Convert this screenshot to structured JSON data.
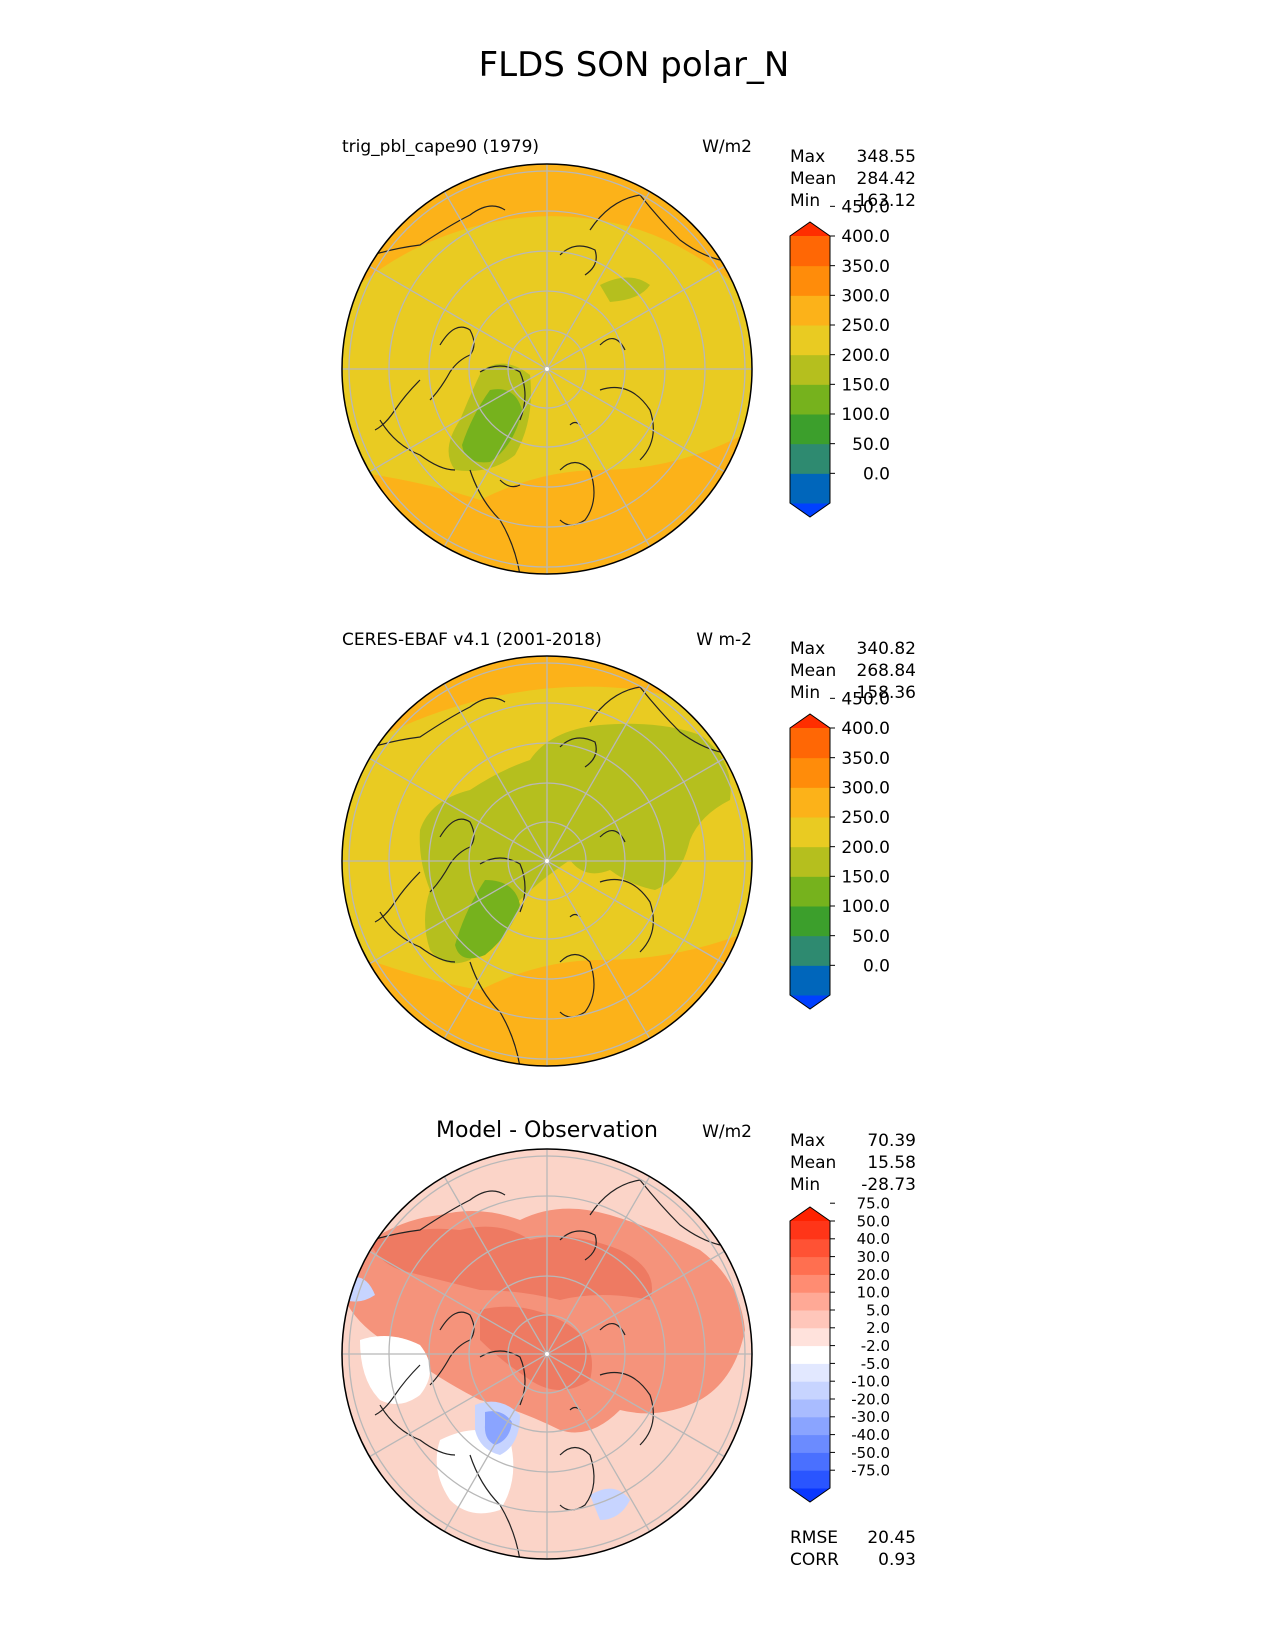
{
  "title": "FLDS SON polar_N",
  "panels": [
    {
      "id": "model",
      "left_title": "trig_pbl_cape90 (1979)",
      "units": "W/m2",
      "stats": [
        {
          "label": "Max",
          "value": "348.55"
        },
        {
          "label": "Mean",
          "value": "284.42"
        },
        {
          "label": "Min",
          "value": "163.12"
        }
      ],
      "colorbar": {
        "ticks": [
          "450.0",
          "400.0",
          "350.0",
          "300.0",
          "250.0",
          "200.0",
          "150.0",
          "100.0",
          "50.0",
          "0.0"
        ],
        "colors": [
          "#0040ff",
          "#0066bb",
          "#2e8a70",
          "#3c9f2c",
          "#76b21d",
          "#b5bf1e",
          "#e9cb22",
          "#fcb219",
          "#ff8c0a",
          "#ff6705",
          "#ff2e00"
        ],
        "extend": "both"
      },
      "region_colors": [
        "#e9cb22",
        "#fcb219",
        "#b5bf1e",
        "#76b21d"
      ]
    },
    {
      "id": "obs",
      "left_title": "CERES-EBAF v4.1 (2001-2018)",
      "units": "W m-2",
      "stats": [
        {
          "label": "Max",
          "value": "340.82"
        },
        {
          "label": "Mean",
          "value": "268.84"
        },
        {
          "label": "Min",
          "value": "158.36"
        }
      ],
      "colorbar": {
        "ticks": [
          "450.0",
          "400.0",
          "350.0",
          "300.0",
          "250.0",
          "200.0",
          "150.0",
          "100.0",
          "50.0",
          "0.0"
        ],
        "colors": [
          "#0040ff",
          "#0066bb",
          "#2e8a70",
          "#3c9f2c",
          "#76b21d",
          "#b5bf1e",
          "#e9cb22",
          "#fcb219",
          "#ff8c0a",
          "#ff6705",
          "#ff2e00"
        ],
        "extend": "both"
      },
      "region_colors": [
        "#e9cb22",
        "#fcb219",
        "#b5bf1e",
        "#76b21d"
      ]
    },
    {
      "id": "diff",
      "center_title": "Model - Observation",
      "units": "W/m2",
      "stats": [
        {
          "label": "Max",
          "value": "70.39"
        },
        {
          "label": "Mean",
          "value": "15.58"
        },
        {
          "label": "Min",
          "value": "-28.73"
        }
      ],
      "colorbar": {
        "ticks": [
          "75.0",
          "50.0",
          "40.0",
          "30.0",
          "20.0",
          "10.0",
          "5.0",
          "2.0",
          "-2.0",
          "-5.0",
          "-10.0",
          "-20.0",
          "-30.0",
          "-40.0",
          "-50.0",
          "-75.0"
        ],
        "colors": [
          "#0a37ff",
          "#2a55ff",
          "#4a70ff",
          "#6b8bff",
          "#8aa4ff",
          "#a9bcff",
          "#c7d4ff",
          "#e2e8ff",
          "#ffffff",
          "#ffe2dc",
          "#ffc6ba",
          "#ffa996",
          "#ff8c72",
          "#ff6f50",
          "#ff5234",
          "#ff3518",
          "#ff2200"
        ],
        "extend": "both"
      },
      "region_colors": [
        "#fbd4c8",
        "#f5937b",
        "#ee7a62",
        "#ffffff",
        "#c7d4ff",
        "#8aa4ff"
      ],
      "footer_stats": [
        {
          "label": "RMSE",
          "value": "20.45"
        },
        {
          "label": "CORR",
          "value": "0.93"
        }
      ]
    }
  ]
}
